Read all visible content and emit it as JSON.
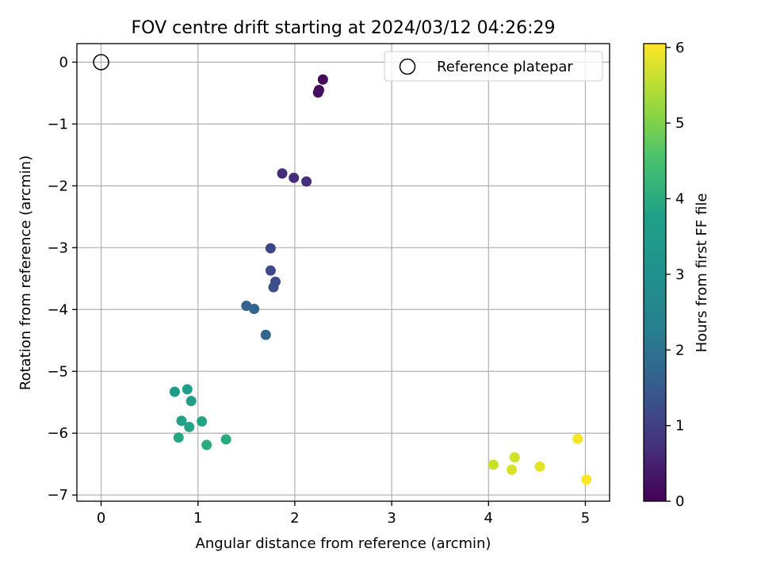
{
  "chart_data": {
    "type": "scatter",
    "title": "FOV centre drift starting at 2024/03/12 04:26:29",
    "xlabel": "Angular distance from reference (arcmin)",
    "ylabel": "Rotation from reference (arcmin)",
    "xlim": [
      -0.25,
      5.25
    ],
    "ylim": [
      -7.1,
      0.3
    ],
    "xticks": [
      0,
      1,
      2,
      3,
      4,
      5
    ],
    "yticks": [
      0,
      -1,
      -2,
      -3,
      -4,
      -5,
      -6,
      -7
    ],
    "grid": true,
    "legend": {
      "placement": "top-right",
      "entries": [
        "Reference platepar"
      ]
    },
    "reference": {
      "x": 0,
      "y": 0,
      "name": "Reference platepar"
    },
    "colorbar": {
      "label": "Hours from first FF file",
      "min": 0,
      "max": 6.05,
      "ticks": [
        0,
        1,
        2,
        3,
        4,
        5,
        6
      ],
      "colormap": "viridis"
    },
    "points": [
      {
        "x": 2.29,
        "y": -0.28,
        "c": 0.12
      },
      {
        "x": 2.25,
        "y": -0.45,
        "c": 0.17
      },
      {
        "x": 2.24,
        "y": -0.49,
        "c": 0.22
      },
      {
        "x": 1.87,
        "y": -1.8,
        "c": 0.72
      },
      {
        "x": 1.99,
        "y": -1.87,
        "c": 0.78
      },
      {
        "x": 2.12,
        "y": -1.93,
        "c": 0.83
      },
      {
        "x": 1.75,
        "y": -3.01,
        "c": 1.28
      },
      {
        "x": 1.75,
        "y": -3.37,
        "c": 1.35
      },
      {
        "x": 1.8,
        "y": -3.55,
        "c": 1.42
      },
      {
        "x": 1.78,
        "y": -3.64,
        "c": 1.48
      },
      {
        "x": 1.5,
        "y": -3.94,
        "c": 1.88
      },
      {
        "x": 1.58,
        "y": -3.99,
        "c": 1.93
      },
      {
        "x": 1.7,
        "y": -4.41,
        "c": 1.98
      },
      {
        "x": 0.76,
        "y": -5.33,
        "c": 3.3
      },
      {
        "x": 0.89,
        "y": -5.29,
        "c": 3.35
      },
      {
        "x": 0.93,
        "y": -5.48,
        "c": 3.4
      },
      {
        "x": 0.83,
        "y": -5.8,
        "c": 3.45
      },
      {
        "x": 1.04,
        "y": -5.81,
        "c": 3.5
      },
      {
        "x": 0.91,
        "y": -5.9,
        "c": 3.55
      },
      {
        "x": 0.8,
        "y": -6.07,
        "c": 3.6
      },
      {
        "x": 1.29,
        "y": -6.1,
        "c": 3.68
      },
      {
        "x": 1.09,
        "y": -6.19,
        "c": 3.72
      },
      {
        "x": 4.05,
        "y": -6.51,
        "c": 5.55
      },
      {
        "x": 4.27,
        "y": -6.39,
        "c": 5.65
      },
      {
        "x": 4.24,
        "y": -6.59,
        "c": 5.7
      },
      {
        "x": 4.53,
        "y": -6.54,
        "c": 5.8
      },
      {
        "x": 4.92,
        "y": -6.09,
        "c": 5.95
      },
      {
        "x": 5.01,
        "y": -6.75,
        "c": 6.05
      }
    ]
  }
}
